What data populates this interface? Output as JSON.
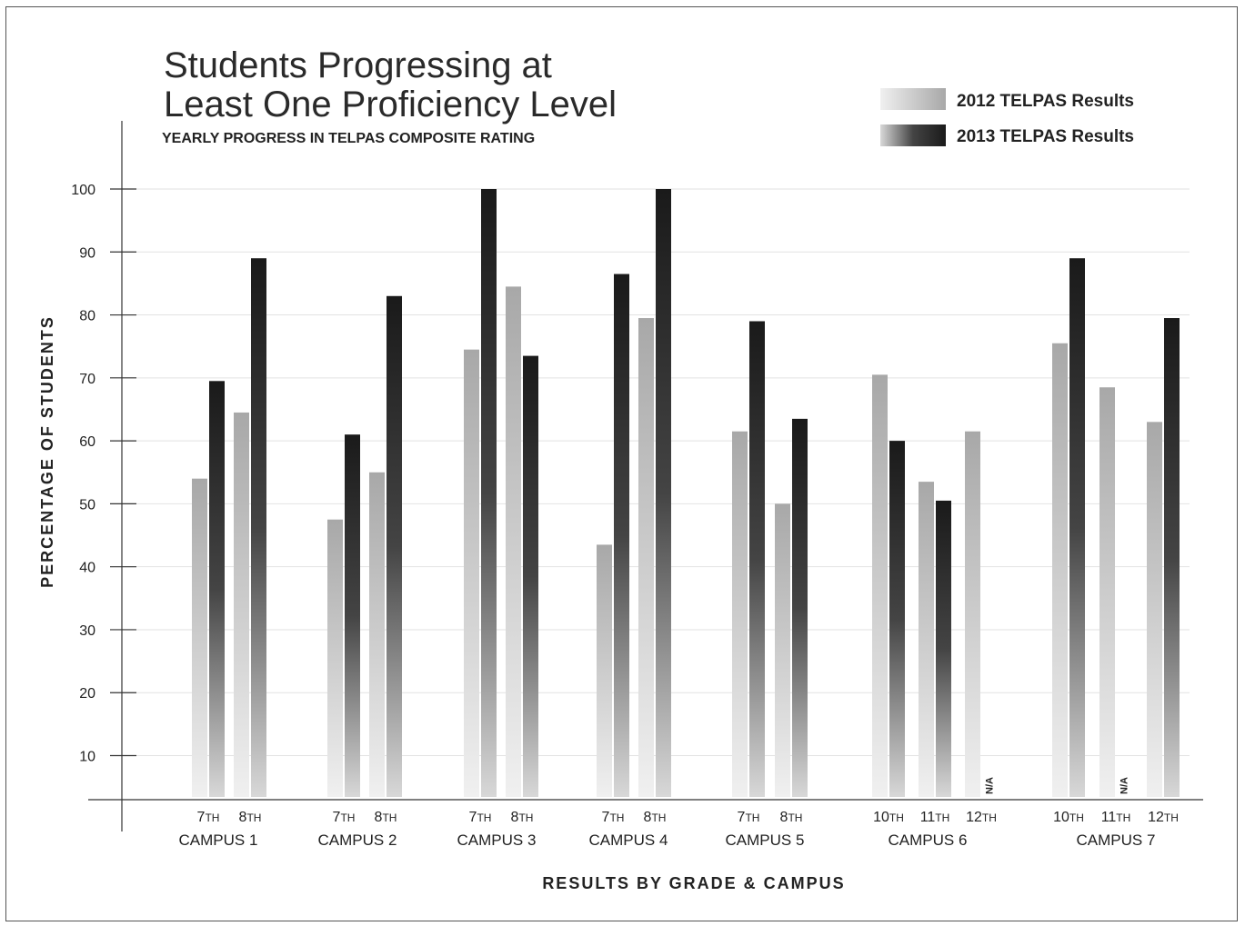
{
  "chart_data": {
    "type": "bar",
    "title_line1": "Students Progressing at",
    "title_line2": "Least One Proficiency Level",
    "subtitle": "YEARLY PROGRESS IN TELPAS COMPOSITE RATING",
    "xlabel": "RESULTS BY GRADE & CAMPUS",
    "ylabel": "PERCENTAGE OF STUDENTS",
    "ylim": [
      3,
      100
    ],
    "yticks": [
      10,
      20,
      30,
      40,
      50,
      60,
      70,
      80,
      90,
      100
    ],
    "grid": true,
    "legend_position": "top-right",
    "series": [
      {
        "name": "2012 TELPAS Results",
        "color_light": "#f0f0f0",
        "color_dark": "#a8a8a8"
      },
      {
        "name": "2013 TELPAS Results",
        "color_light": "#d8d8d8",
        "color_dark": "#1a1a1a"
      }
    ],
    "na_label": "N/A",
    "campuses": [
      {
        "name": "CAMPUS 1",
        "grades": [
          {
            "grade": "7",
            "suffix": "TH",
            "v2012": 54,
            "v2013": 69.5
          },
          {
            "grade": "8",
            "suffix": "TH",
            "v2012": 64.5,
            "v2013": 89
          }
        ]
      },
      {
        "name": "CAMPUS 2",
        "grades": [
          {
            "grade": "7",
            "suffix": "TH",
            "v2012": 47.5,
            "v2013": 61
          },
          {
            "grade": "8",
            "suffix": "TH",
            "v2012": 55,
            "v2013": 83
          }
        ]
      },
      {
        "name": "CAMPUS 3",
        "grades": [
          {
            "grade": "7",
            "suffix": "TH",
            "v2012": 74.5,
            "v2013": 100
          },
          {
            "grade": "8",
            "suffix": "TH",
            "v2012": 84.5,
            "v2013": 73.5
          }
        ]
      },
      {
        "name": "CAMPUS 4",
        "grades": [
          {
            "grade": "7",
            "suffix": "TH",
            "v2012": 43.5,
            "v2013": 86.5
          },
          {
            "grade": "8",
            "suffix": "TH",
            "v2012": 79.5,
            "v2013": 100
          }
        ]
      },
      {
        "name": "CAMPUS 5",
        "grades": [
          {
            "grade": "7",
            "suffix": "TH",
            "v2012": 61.5,
            "v2013": 79
          },
          {
            "grade": "8",
            "suffix": "TH",
            "v2012": 50,
            "v2013": 63.5
          }
        ]
      },
      {
        "name": "CAMPUS 6",
        "grades": [
          {
            "grade": "10",
            "suffix": "TH",
            "v2012": 70.5,
            "v2013": 60
          },
          {
            "grade": "11",
            "suffix": "TH",
            "v2012": 53.5,
            "v2013": 50.5
          },
          {
            "grade": "12",
            "suffix": "TH",
            "v2012": 61.5,
            "v2013": null
          }
        ]
      },
      {
        "name": "CAMPUS 7",
        "grades": [
          {
            "grade": "10",
            "suffix": "TH",
            "v2012": 75.5,
            "v2013": 89
          },
          {
            "grade": "11",
            "suffix": "TH",
            "v2012": 68.5,
            "v2013": null
          },
          {
            "grade": "12",
            "suffix": "TH",
            "v2012": 63,
            "v2013": 79.5
          }
        ]
      }
    ]
  }
}
